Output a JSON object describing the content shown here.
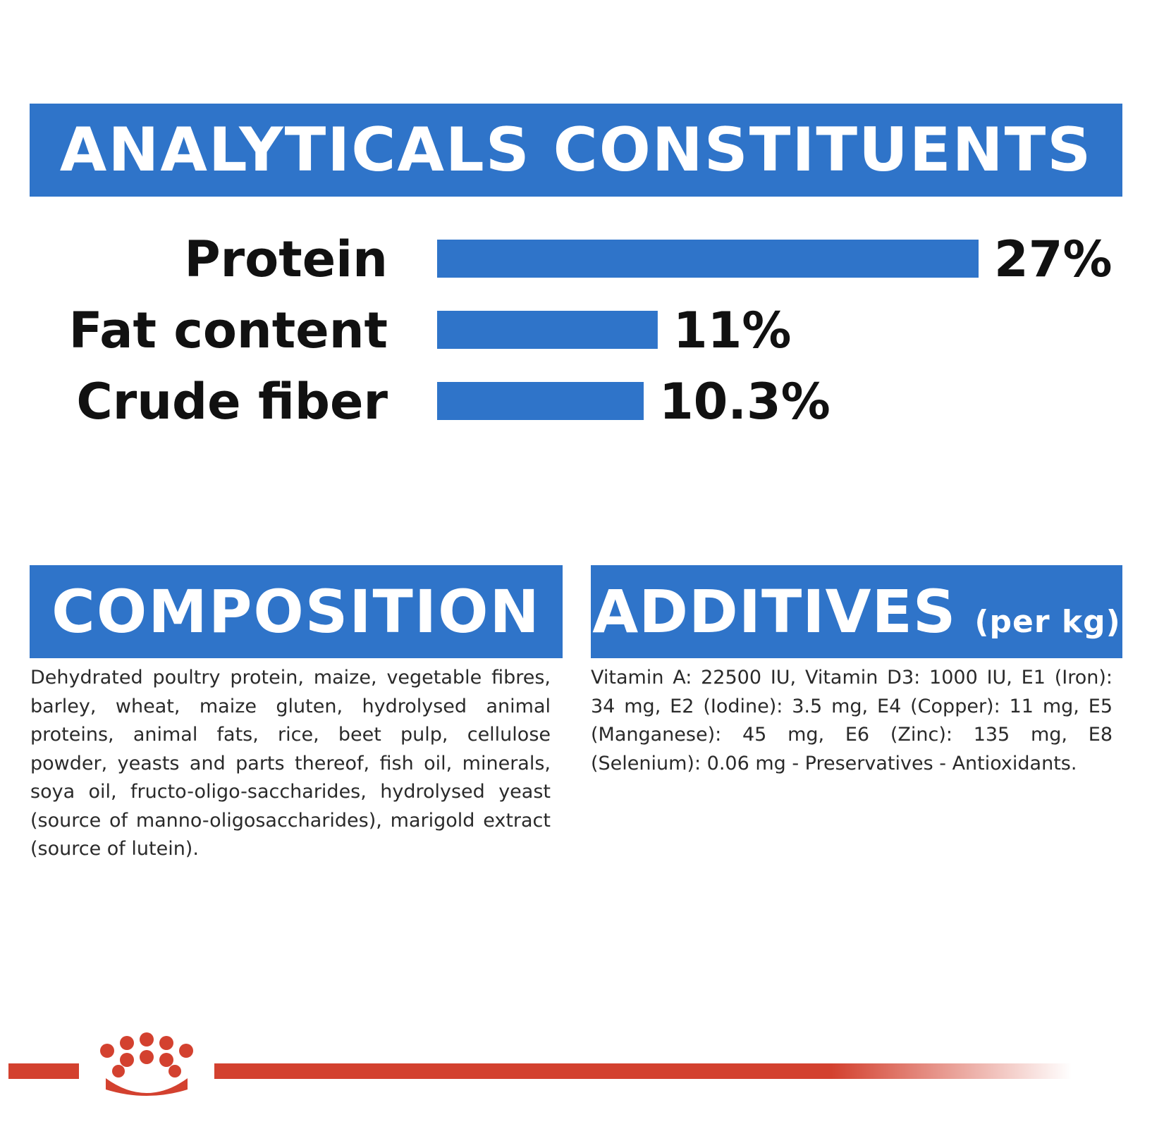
{
  "analytical_title": "ANALYTICALS CONSTITUENTS",
  "composition": {
    "title": "COMPOSITION",
    "text": "Dehydrated poultry protein, maize, vegetable fibres, barley, wheat, maize gluten, hydrolysed animal proteins, animal fats, rice, beet pulp, cellulose powder, yeasts and parts thereof, fish oil, minerals, soya oil, fructo-oligo-saccharides, hydrolysed yeast (source of manno-oligosaccharides), marigold extract (source of lutein)."
  },
  "additives": {
    "title": "ADDITIVES",
    "title_suffix": "(per kg)",
    "text": "Vitamin A: 22500 IU, Vitamin D3: 1000 IU, E1 (Iron): 34 mg, E2 (Iodine): 3.5 mg, E4 (Copper): 11 mg, E5 (Manganese): 45 mg, E6 (Zinc): 135 mg, E8 (Selenium): 0.06 mg - Preservatives - Antioxidants."
  },
  "chart_data": {
    "type": "bar",
    "orientation": "horizontal",
    "categories": [
      "Protein",
      "Fat content",
      "Crude fiber"
    ],
    "values": [
      27,
      11,
      10.3
    ],
    "value_labels": [
      "27%",
      "11%",
      "10.3%"
    ],
    "unit": "%",
    "bar_color": "#2f74c9",
    "label_color": "#111111",
    "grid": false
  },
  "colors": {
    "banner": "#2f74c9",
    "footer_red": "#d3412f"
  },
  "footer": {
    "logo_icon": "crown-paw-logo-icon"
  }
}
